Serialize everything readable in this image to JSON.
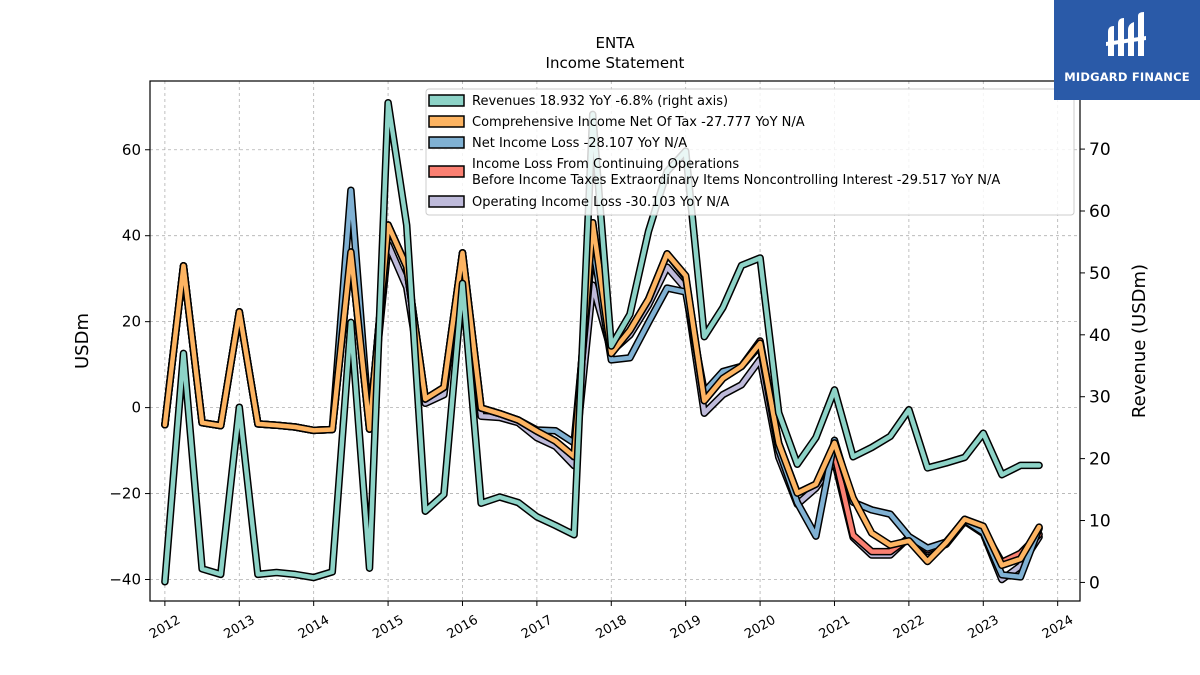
{
  "chart_data": {
    "type": "line",
    "title": "ENTA",
    "subtitle": "Income Statement",
    "ylabel": "USDm",
    "ylabel_right": "Revenue (USDm)",
    "ylim": [
      -45,
      76
    ],
    "ylim_right": [
      -3,
      81
    ],
    "x_range": [
      2011.8,
      2024.3
    ],
    "x_ticks": [
      "2012",
      "2013",
      "2014",
      "2015",
      "2016",
      "2017",
      "2018",
      "2019",
      "2020",
      "2021",
      "2022",
      "2023",
      "2024"
    ],
    "y_ticks": [
      "60",
      "40",
      "20",
      "0",
      "−20",
      "−40"
    ],
    "y_ticks_right": [
      "70",
      "60",
      "50",
      "40",
      "30",
      "20",
      "10",
      "0"
    ],
    "grid": true,
    "legend_position": "top-right",
    "x": [
      2012.0,
      2012.25,
      2012.5,
      2012.75,
      2013.0,
      2013.25,
      2013.5,
      2013.75,
      2014.0,
      2014.25,
      2014.5,
      2014.75,
      2015.0,
      2015.25,
      2015.5,
      2015.75,
      2016.0,
      2016.25,
      2016.5,
      2016.75,
      2017.0,
      2017.25,
      2017.5,
      2017.75,
      2018.0,
      2018.25,
      2018.5,
      2018.75,
      2019.0,
      2019.25,
      2019.5,
      2019.75,
      2020.0,
      2020.25,
      2020.5,
      2020.75,
      2021.0,
      2021.25,
      2021.5,
      2021.75,
      2022.0,
      2022.25,
      2022.5,
      2022.75,
      2023.0,
      2023.25,
      2023.5,
      2023.75
    ],
    "series": [
      {
        "name": "Revenues  18.932 YoY -6.8% (right axis)",
        "axis": "right",
        "color": "#8dd3c7",
        "values": [
          0.1,
          37,
          2.2,
          1.3,
          28.3,
          1.3,
          1.6,
          1.3,
          0.8,
          1.7,
          42,
          2.3,
          77.5,
          57.7,
          11.5,
          14.2,
          48.3,
          12.8,
          13.8,
          12.9,
          10.6,
          9.2,
          7.7,
          75.6,
          38.2,
          43.3,
          56.7,
          66.4,
          69.7,
          39.7,
          44.4,
          51.2,
          52.4,
          27.4,
          19.1,
          23.4,
          31.1,
          20.3,
          21.8,
          23.6,
          27.9,
          18.5,
          19.3,
          20.2,
          24.1,
          17.4,
          18.9,
          18.9
        ]
      },
      {
        "name": "Comprehensive Income Net Of Tax  -27.777 YoY N/A",
        "axis": "left",
        "color": "#fdb462",
        "values": [
          -4.0,
          33.0,
          -3.5,
          -4.2,
          22.3,
          -3.8,
          -4.1,
          -4.5,
          -5.3,
          -5.1,
          36.2,
          -5.0,
          42.5,
          32.8,
          2.0,
          4.7,
          36.0,
          -0.1,
          -1.4,
          -2.9,
          -5.5,
          -7.8,
          -11.4,
          43.0,
          12.6,
          18.0,
          25.2,
          35.8,
          30.7,
          1.6,
          6.8,
          9.6,
          15.0,
          -8.3,
          -19.9,
          -17.8,
          -8.2,
          -21.0,
          -29.2,
          -32.0,
          -31.0,
          -35.8,
          -31.4,
          -26.0,
          -27.6,
          -36.7,
          -35.2,
          -27.8
        ]
      },
      {
        "name": "Net Income Loss  -28.107 YoY N/A",
        "axis": "left",
        "color": "#80b1d3",
        "values": [
          -4.0,
          33.0,
          -3.5,
          -4.2,
          22.3,
          -3.8,
          -4.1,
          -4.5,
          -5.3,
          -5.1,
          50.6,
          -5.0,
          42.5,
          32.8,
          2.0,
          4.7,
          36.0,
          -0.1,
          -1.4,
          -2.9,
          -5.2,
          -5.4,
          -8.2,
          38.0,
          11.1,
          11.6,
          19.8,
          27.8,
          26.9,
          3.6,
          8.4,
          9.6,
          14.5,
          -9.8,
          -22.1,
          -29.9,
          -7.6,
          -22.0,
          -23.8,
          -24.8,
          -30.0,
          -32.7,
          -31.3,
          -26.2,
          -29.0,
          -38.9,
          -39.4,
          -28.1
        ]
      },
      {
        "name": "Income Loss From Continuing Operations\nBefore Income Taxes Extraordinary Items Noncontrolling Interest  -29.517 YoY N/A",
        "axis": "left",
        "color": "#fb8072",
        "values": [
          -4.0,
          33.0,
          -3.5,
          -4.2,
          22.3,
          -3.8,
          -4.1,
          -4.5,
          -5.3,
          -5.1,
          36.2,
          -5.0,
          42.5,
          32.8,
          2.0,
          4.7,
          36.0,
          -0.1,
          -1.4,
          -2.9,
          -5.5,
          -7.8,
          -11.4,
          43.0,
          12.6,
          18.0,
          25.2,
          35.8,
          30.4,
          1.6,
          6.8,
          9.6,
          15.5,
          -8.3,
          -19.9,
          -17.8,
          -10.8,
          -29.7,
          -33.5,
          -33.5,
          -30.3,
          -33.1,
          -31.4,
          -26.0,
          -28.4,
          -36.0,
          -33.9,
          -29.5
        ]
      },
      {
        "name": "Operating Income Loss  -30.103 YoY N/A",
        "axis": "left",
        "color": "#bebada",
        "values": [
          -4.0,
          33.0,
          -3.5,
          -4.2,
          22.3,
          -3.8,
          -4.1,
          -4.5,
          -5.3,
          -5.1,
          36.2,
          -5.0,
          38.0,
          28.0,
          1.0,
          3.0,
          36.0,
          -2.0,
          -2.3,
          -3.5,
          -7.0,
          -9.0,
          -13.5,
          28.5,
          13.0,
          16.9,
          23.9,
          32.7,
          27.7,
          -1.3,
          3.0,
          5.3,
          11.2,
          -11.5,
          -22.5,
          -18.7,
          -12.4,
          -30.2,
          -34.3,
          -34.3,
          -30.2,
          -33.5,
          -31.8,
          -26.4,
          -29.3,
          -40.0,
          -36.8,
          -30.1
        ]
      }
    ]
  },
  "logo": {
    "text": "MIDGARD FINANCE"
  }
}
